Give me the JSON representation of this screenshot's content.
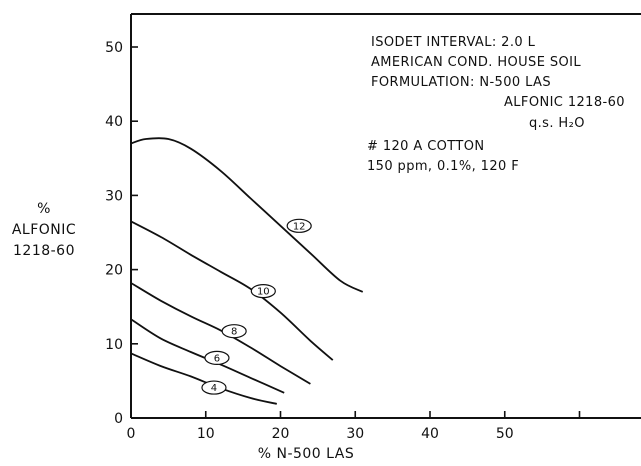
{
  "chart_data": {
    "type": "line",
    "title": "",
    "xlabel": "% N-500 LAS",
    "ylabel_lines": [
      "%",
      "ALFONIC",
      "1218-60"
    ],
    "xlim": [
      0,
      70
    ],
    "ylim": [
      0,
      55
    ],
    "x_ticks": [
      0,
      10,
      20,
      30,
      40,
      50,
      60
    ],
    "x_tick_labels": [
      "0",
      "10",
      "20",
      "30",
      "40",
      "50",
      ""
    ],
    "y_ticks": [
      0,
      10,
      20,
      30,
      40,
      50
    ],
    "y_tick_labels": [
      "0",
      "10",
      "20",
      "30",
      "40",
      "50"
    ],
    "grid": false,
    "legend": "none",
    "annotations": [
      "ISODET INTERVAL: 2.0 L",
      "AMERICAN COND. HOUSE SOIL",
      "FORMULATION: N-500 LAS",
      "ALFONIC 1218-60",
      "q.s. H₂O",
      "# 120 A COTTON",
      "150 ppm, 0.1%, 120 F"
    ],
    "series": [
      {
        "name": "12",
        "x": [
          0,
          2,
          5,
          8,
          12,
          16,
          20,
          24,
          28,
          31
        ],
        "y": [
          37,
          37.6,
          37.6,
          36.3,
          33.3,
          29.6,
          25.9,
          22.2,
          18.5,
          17
        ],
        "label_at": [
          22.5,
          25.9
        ]
      },
      {
        "name": "10",
        "x": [
          0,
          4,
          8,
          12,
          16,
          20,
          24,
          27
        ],
        "y": [
          26.5,
          24.4,
          22,
          19.7,
          17.4,
          14.2,
          10.4,
          7.8
        ],
        "label_at": [
          17.7,
          17.1
        ]
      },
      {
        "name": "8",
        "x": [
          0,
          4,
          8,
          12,
          16,
          20,
          24
        ],
        "y": [
          18.2,
          15.8,
          13.7,
          11.8,
          9.5,
          7,
          4.6
        ],
        "label_at": [
          13.8,
          11.7
        ]
      },
      {
        "name": "6",
        "x": [
          0,
          4,
          8,
          12,
          16,
          20.5
        ],
        "y": [
          13.3,
          10.7,
          8.9,
          7.2,
          5.4,
          3.4
        ],
        "label_at": [
          11.5,
          8.1
        ]
      },
      {
        "name": "4",
        "x": [
          0,
          4,
          8,
          12,
          16,
          19.5
        ],
        "y": [
          8.7,
          7,
          5.6,
          4,
          2.7,
          1.9
        ],
        "label_at": [
          11.1,
          4.1
        ]
      }
    ]
  }
}
